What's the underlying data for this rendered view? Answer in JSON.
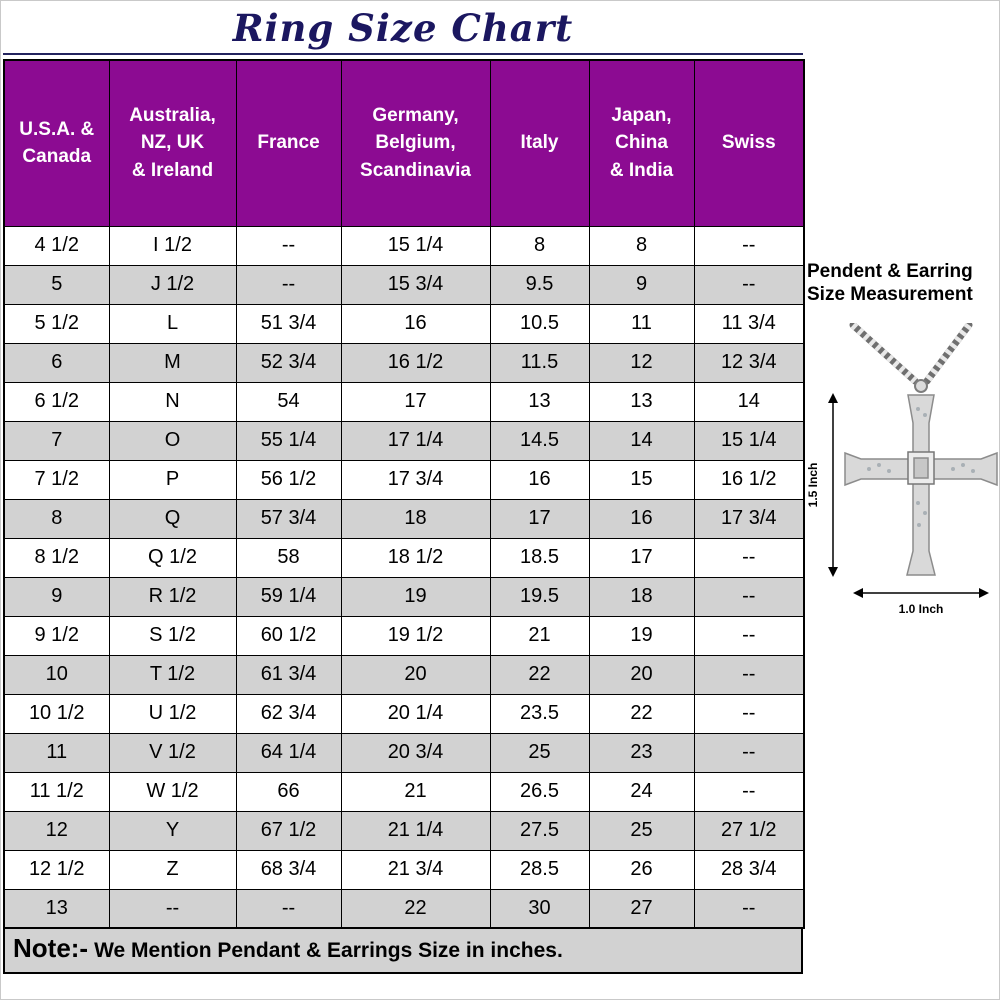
{
  "title": "Ring Size Chart",
  "chart_data": {
    "type": "table",
    "title": "Ring Size Chart",
    "columns": [
      "U.S.A. &\nCanada",
      "Australia,\nNZ, UK\n& Ireland",
      "France",
      "Germany,\nBelgium,\nScandinavia",
      "Italy",
      "Japan,\nChina\n& India",
      "Swiss"
    ],
    "rows": [
      [
        "4 1/2",
        "I 1/2",
        "--",
        "15 1/4",
        "8",
        "8",
        "--"
      ],
      [
        "5",
        "J 1/2",
        "--",
        "15 3/4",
        "9.5",
        "9",
        "--"
      ],
      [
        "5 1/2",
        "L",
        "51 3/4",
        "16",
        "10.5",
        "11",
        "11 3/4"
      ],
      [
        "6",
        "M",
        "52 3/4",
        "16 1/2",
        "11.5",
        "12",
        "12 3/4"
      ],
      [
        "6 1/2",
        "N",
        "54",
        "17",
        "13",
        "13",
        "14"
      ],
      [
        "7",
        "O",
        "55 1/4",
        "17 1/4",
        "14.5",
        "14",
        "15 1/4"
      ],
      [
        "7 1/2",
        "P",
        "56 1/2",
        "17 3/4",
        "16",
        "15",
        "16 1/2"
      ],
      [
        "8",
        "Q",
        "57 3/4",
        "18",
        "17",
        "16",
        "17 3/4"
      ],
      [
        "8 1/2",
        "Q 1/2",
        "58",
        "18 1/2",
        "18.5",
        "17",
        "--"
      ],
      [
        "9",
        "R 1/2",
        "59 1/4",
        "19",
        "19.5",
        "18",
        "--"
      ],
      [
        "9 1/2",
        "S 1/2",
        "60 1/2",
        "19 1/2",
        "21",
        "19",
        "--"
      ],
      [
        "10",
        "T 1/2",
        "61 3/4",
        "20",
        "22",
        "20",
        "--"
      ],
      [
        "10 1/2",
        "U 1/2",
        "62 3/4",
        "20 1/4",
        "23.5",
        "22",
        "--"
      ],
      [
        "11",
        "V 1/2",
        "64 1/4",
        "20 3/4",
        "25",
        "23",
        "--"
      ],
      [
        "11 1/2",
        "W 1/2",
        "66",
        "21",
        "26.5",
        "24",
        "--"
      ],
      [
        "12",
        "Y",
        "67 1/2",
        "21 1/4",
        "27.5",
        "25",
        "27 1/2"
      ],
      [
        "12 1/2",
        "Z",
        "68 3/4",
        "21 3/4",
        "28.5",
        "26",
        "28 3/4"
      ],
      [
        "13",
        "--",
        "--",
        "22",
        "30",
        "27",
        "--"
      ]
    ],
    "legend_position": "none",
    "grid": true
  },
  "note": {
    "prefix": "Note:-",
    "text": "We Mention Pendant & Earrings Size in inches."
  },
  "side_panel": {
    "heading": "Pendent & Earring\nSize Measurement",
    "pendant_height_label": "1.5 Inch",
    "pendant_width_label": "1.0 Inch"
  },
  "colors": {
    "header_bg": "#8C0B92",
    "header_text": "#FFFFFF",
    "row_alt_bg": "#D2D2D2",
    "note_bg": "#D2D2D2",
    "title_color": "#1B1760",
    "border_color": "#000000"
  }
}
